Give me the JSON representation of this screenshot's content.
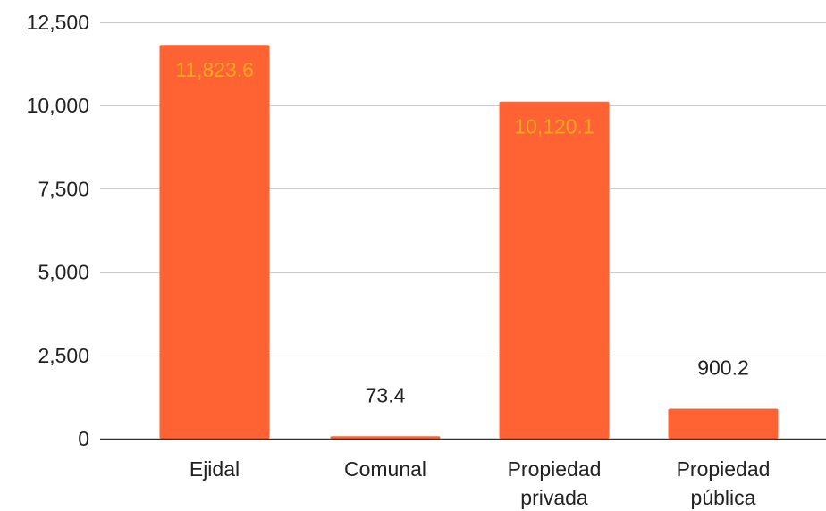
{
  "chart_data": {
    "type": "bar",
    "categories": [
      [
        "Ejidal"
      ],
      [
        "Comunal"
      ],
      [
        "Propiedad",
        "privada"
      ],
      [
        "Propiedad",
        "pública"
      ]
    ],
    "values": [
      11823.6,
      73.4,
      10120.1,
      900.2
    ],
    "data_labels": [
      "11,823.6",
      "73.4",
      "10,120.1",
      "900.2"
    ],
    "y_ticks": [
      0,
      2500,
      5000,
      7500,
      10000,
      12500
    ],
    "y_tick_labels": [
      "0",
      "2,500",
      "5,000",
      "7,500",
      "10,000",
      "12,500"
    ],
    "ylim": [
      0,
      12500
    ],
    "grid": true,
    "legend": "none",
    "colors": {
      "bar": "#ff6333",
      "label_inside": "#f5a623",
      "label_outside": "#222222",
      "grid": "#cccccc",
      "axis": "#333333"
    }
  }
}
